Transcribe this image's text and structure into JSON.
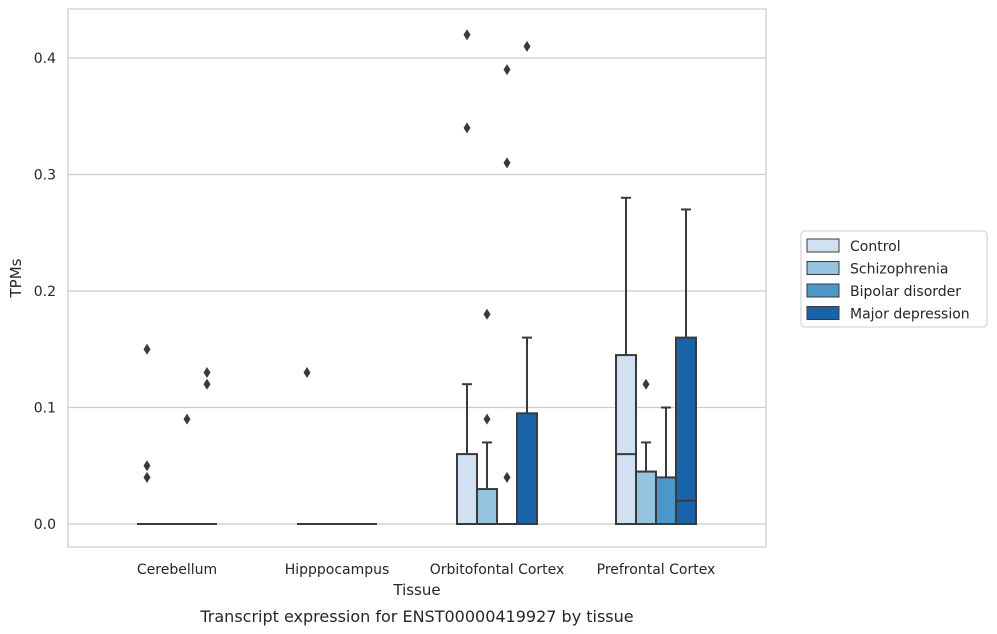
{
  "chart_data": {
    "type": "box",
    "xlabel": "Tissue",
    "ylabel": "TPMs",
    "caption": "Transcript expression for ENST00000419927 by tissue",
    "ylim": [
      -0.02,
      0.44
    ],
    "yticks": [
      "0.0",
      "0.1",
      "0.2",
      "0.3",
      "0.4"
    ],
    "grid": "horizontal",
    "legend_placement": "right",
    "categories": [
      "Cerebellum",
      "Hipppocampus",
      "Orbitofontal Cortex",
      "Prefrontal Cortex"
    ],
    "series": [
      {
        "name": "Control",
        "color": "#d0e1f2",
        "boxes": [
          {
            "q1": 0,
            "median": 0,
            "q3": 0,
            "whisker_low": 0,
            "whisker_high": 0,
            "outliers": [
              0.15,
              0.05,
              0.04
            ]
          },
          {
            "q1": 0,
            "median": 0,
            "q3": 0,
            "whisker_low": 0,
            "whisker_high": 0,
            "outliers": [
              0.13
            ]
          },
          {
            "q1": 0,
            "median": 0,
            "q3": 0.06,
            "whisker_low": 0,
            "whisker_high": 0.12,
            "outliers": [
              0.42,
              0.34
            ]
          },
          {
            "q1": 0,
            "median": 0.06,
            "q3": 0.145,
            "whisker_low": 0,
            "whisker_high": 0.28,
            "outliers": []
          }
        ]
      },
      {
        "name": "Schizophrenia",
        "color": "#94c4df",
        "boxes": [
          {
            "q1": 0,
            "median": 0,
            "q3": 0,
            "whisker_low": 0,
            "whisker_high": 0,
            "outliers": []
          },
          {
            "q1": 0,
            "median": 0,
            "q3": 0,
            "whisker_low": 0,
            "whisker_high": 0,
            "outliers": []
          },
          {
            "q1": 0,
            "median": 0,
            "q3": 0.03,
            "whisker_low": 0,
            "whisker_high": 0.07,
            "outliers": [
              0.18,
              0.09
            ]
          },
          {
            "q1": 0,
            "median": 0,
            "q3": 0.045,
            "whisker_low": 0,
            "whisker_high": 0.07,
            "outliers": [
              0.12
            ]
          }
        ]
      },
      {
        "name": "Bipolar disorder",
        "color": "#4a98c9",
        "boxes": [
          {
            "q1": 0,
            "median": 0,
            "q3": 0,
            "whisker_low": 0,
            "whisker_high": 0,
            "outliers": [
              0.09
            ]
          },
          {
            "q1": 0,
            "median": 0,
            "q3": 0,
            "whisker_low": 0,
            "whisker_high": 0,
            "outliers": []
          },
          {
            "q1": 0,
            "median": 0,
            "q3": 0,
            "whisker_low": 0,
            "whisker_high": 0,
            "outliers": [
              0.39,
              0.31,
              0.04
            ]
          },
          {
            "q1": 0,
            "median": 0,
            "q3": 0.04,
            "whisker_low": 0,
            "whisker_high": 0.1,
            "outliers": []
          }
        ]
      },
      {
        "name": "Major depression",
        "color": "#1764ab",
        "boxes": [
          {
            "q1": 0,
            "median": 0,
            "q3": 0,
            "whisker_low": 0,
            "whisker_high": 0,
            "outliers": [
              0.13,
              0.12
            ]
          },
          {
            "q1": 0,
            "median": 0,
            "q3": 0,
            "whisker_low": 0,
            "whisker_high": 0,
            "outliers": []
          },
          {
            "q1": 0,
            "median": 0,
            "q3": 0.095,
            "whisker_low": 0,
            "whisker_high": 0.16,
            "outliers": [
              0.41
            ]
          },
          {
            "q1": 0,
            "median": 0.02,
            "q3": 0.16,
            "whisker_low": 0,
            "whisker_high": 0.27,
            "outliers": []
          }
        ]
      }
    ]
  }
}
